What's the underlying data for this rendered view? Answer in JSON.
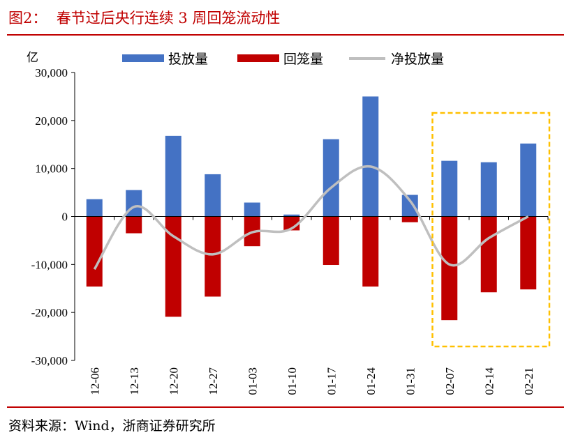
{
  "title": "图2：  春节过后央行连续 3 周回笼流动性",
  "source": "资料来源：Wind，浙商证券研究所",
  "chart_data": {
    "type": "bar",
    "ylabel": "亿",
    "ylim": [
      -30000,
      30000
    ],
    "yticks": [
      30000,
      20000,
      10000,
      0,
      -10000,
      -20000,
      -30000
    ],
    "ytick_labels": [
      "30,000",
      "20,000",
      "10,000",
      "0",
      "-10,000",
      "-20,000",
      "-30,000"
    ],
    "categories": [
      "12-06",
      "12-13",
      "12-20",
      "12-27",
      "01-03",
      "01-10",
      "01-17",
      "01-24",
      "01-31",
      "02-07",
      "02-14",
      "02-21"
    ],
    "legend_position": "top",
    "grid": false,
    "series": [
      {
        "name": "投放量",
        "type": "bar",
        "color": "#4472c4",
        "values": [
          3600,
          5500,
          16800,
          8800,
          2900,
          400,
          16100,
          25000,
          4500,
          11600,
          11300,
          15200
        ]
      },
      {
        "name": "回笼量",
        "type": "bar",
        "color": "#c00000",
        "values": [
          -14600,
          -3500,
          -20900,
          -16700,
          -6200,
          -2900,
          -10100,
          -14600,
          -1200,
          -21600,
          -15800,
          -15200
        ]
      },
      {
        "name": "净投放量",
        "type": "line",
        "smooth": true,
        "color": "#bfbfbf",
        "values": [
          -11000,
          2000,
          -4100,
          -7900,
          -3300,
          -2500,
          6000,
          10400,
          3300,
          -10000,
          -4500,
          0
        ]
      }
    ],
    "highlight": {
      "categories": [
        "02-07",
        "02-21"
      ],
      "color": "#ffc000",
      "style": "dashed"
    }
  }
}
